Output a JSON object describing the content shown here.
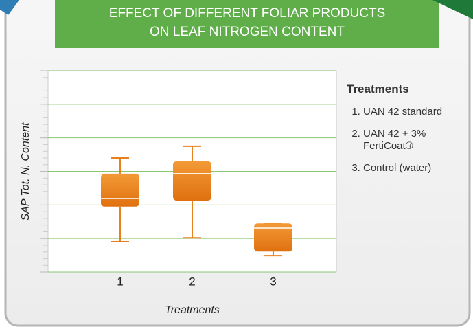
{
  "chart_data": {
    "type": "box",
    "title_lines": [
      "EFFECT OF DIFFERENT FOLIAR PRODUCTS",
      "ON LEAF NITROGEN CONTENT"
    ],
    "y_label": "SAP Tot. N. Content",
    "x_label": "Treatments",
    "categories": [
      "1",
      "2",
      "3"
    ],
    "boxes": [
      {
        "min": 0.9,
        "q1": 1.95,
        "median": 2.19,
        "q3": 2.93,
        "max": 3.4
      },
      {
        "min": 1.02,
        "q1": 2.13,
        "median": 2.93,
        "q3": 3.3,
        "max": 3.75
      },
      {
        "min": 0.49,
        "q1": 0.61,
        "median": 1.31,
        "q3": 1.45,
        "max": 1.45
      }
    ],
    "color": "#e8801c",
    "ylim": [
      0,
      6
    ],
    "yticks": [
      0,
      1,
      2,
      3,
      4,
      5,
      6
    ],
    "grid": true,
    "legend": {
      "title": "Treatments",
      "items": [
        "UAN 42 standard",
        "UAN 42 + 3% FertiCoat®",
        "Control (water)"
      ]
    }
  }
}
